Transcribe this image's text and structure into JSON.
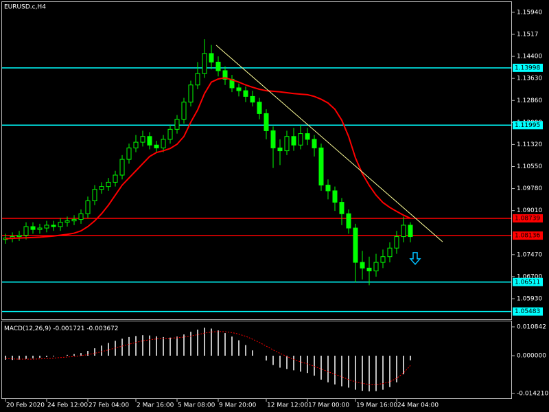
{
  "chart_data": [
    {
      "type": "candlestick",
      "title": "EURUSD.c,H4",
      "open": [
        1.08,
        1.0805,
        1.081,
        1.0815,
        1.0845,
        1.0835,
        1.084,
        1.085,
        1.0845,
        1.086,
        1.0865,
        1.087,
        1.089,
        1.0935,
        1.0975,
        1.0985,
        1.1,
        1.1025,
        1.108,
        1.112,
        1.114,
        1.116,
        1.113,
        1.112,
        1.115,
        1.1185,
        1.122,
        1.128,
        1.134,
        1.138,
        1.145,
        1.142,
        1.139,
        1.136,
        1.133,
        1.132,
        1.13,
        1.128,
        1.124,
        1.118,
        1.112,
        1.111,
        1.116,
        1.113,
        1.117,
        1.115,
        1.112,
        1.099,
        1.097,
        1.093,
        1.089,
        1.084,
        1.072,
        1.07,
        1.069,
        1.072,
        1.074,
        1.077,
        1.081,
        1.085
      ],
      "high": [
        1.082,
        1.0825,
        1.083,
        1.086,
        1.086,
        1.0855,
        1.0865,
        1.0865,
        1.0875,
        1.088,
        1.0885,
        1.0905,
        1.095,
        1.099,
        1.1,
        1.1015,
        1.104,
        1.1095,
        1.1135,
        1.1165,
        1.118,
        1.1175,
        1.1145,
        1.1165,
        1.12,
        1.1235,
        1.1295,
        1.1355,
        1.142,
        1.15,
        1.148,
        1.144,
        1.1405,
        1.1375,
        1.1345,
        1.1335,
        1.132,
        1.1295,
        1.1255,
        1.1195,
        1.115,
        1.118,
        1.119,
        1.12,
        1.119,
        1.1165,
        1.1135,
        1.101,
        1.0985,
        1.0945,
        1.0905,
        1.0855,
        1.076,
        1.074,
        1.075,
        1.0765,
        1.079,
        1.083,
        1.088,
        1.086
      ],
      "low": [
        1.0785,
        1.079,
        1.0795,
        1.08,
        1.082,
        1.082,
        1.0825,
        1.083,
        1.083,
        1.0845,
        1.085,
        1.0855,
        1.0875,
        1.092,
        1.096,
        1.097,
        1.0985,
        1.101,
        1.1065,
        1.1105,
        1.1125,
        1.1115,
        1.1105,
        1.1105,
        1.1135,
        1.117,
        1.1205,
        1.1265,
        1.1325,
        1.1365,
        1.1395,
        1.137,
        1.134,
        1.1315,
        1.13,
        1.128,
        1.1265,
        1.122,
        1.115,
        1.105,
        1.106,
        1.1095,
        1.111,
        1.1115,
        1.113,
        1.109,
        1.097,
        1.094,
        1.09,
        1.085,
        1.082,
        1.065,
        1.066,
        1.064,
        1.067,
        1.07,
        1.072,
        1.075,
        1.079,
        1.079
      ],
      "close": [
        1.0805,
        1.081,
        1.0815,
        1.0845,
        1.0835,
        1.084,
        1.085,
        1.0845,
        1.086,
        1.0865,
        1.087,
        1.089,
        1.0935,
        1.0975,
        1.0985,
        1.1,
        1.1025,
        1.108,
        1.112,
        1.114,
        1.116,
        1.113,
        1.112,
        1.115,
        1.1185,
        1.122,
        1.128,
        1.134,
        1.138,
        1.145,
        1.142,
        1.139,
        1.136,
        1.133,
        1.132,
        1.13,
        1.128,
        1.124,
        1.118,
        1.112,
        1.111,
        1.116,
        1.113,
        1.117,
        1.115,
        1.112,
        1.099,
        1.097,
        1.093,
        1.089,
        1.084,
        1.072,
        1.07,
        1.069,
        1.072,
        1.074,
        1.077,
        1.081,
        1.085,
        1.081
      ],
      "color": "#00ff00",
      "ma": {
        "color": "#ff0000",
        "values": [
          1.0803,
          1.0804,
          1.0805,
          1.0806,
          1.0807,
          1.0808,
          1.081,
          1.0812,
          1.0815,
          1.0818,
          1.0822,
          1.083,
          1.0845,
          1.0865,
          1.089,
          1.092,
          1.0955,
          1.099,
          1.1015,
          1.104,
          1.1065,
          1.109,
          1.1104,
          1.111,
          1.1118,
          1.1133,
          1.116,
          1.121,
          1.1253,
          1.131,
          1.135,
          1.1361,
          1.1365,
          1.1358,
          1.135,
          1.134,
          1.1332,
          1.1325,
          1.132,
          1.1318,
          1.1316,
          1.1313,
          1.131,
          1.1308,
          1.1306,
          1.13,
          1.129,
          1.1277,
          1.1255,
          1.1217,
          1.116,
          1.1085,
          1.103,
          1.0989,
          1.0955,
          1.0929,
          1.0912,
          1.0898,
          1.0885,
          1.0874
        ]
      },
      "xlim": [
        -0.5,
        73.7
      ],
      "xticks": [
        {
          "value": 0,
          "label": "20 Feb 2020"
        },
        {
          "value": 6,
          "label": "24 Feb 12:00"
        },
        {
          "value": 12,
          "label": "27 Feb 04:00"
        },
        {
          "value": 19,
          "label": "2 Mar 16:00"
        },
        {
          "value": 25,
          "label": "5 Mar 08:00"
        },
        {
          "value": 31,
          "label": "9 Mar 20:00"
        },
        {
          "value": 38,
          "label": "12 Mar 12:00"
        },
        {
          "value": 44,
          "label": "17 Mar 00:00"
        },
        {
          "value": 51,
          "label": "19 Mar 16:00"
        },
        {
          "value": 57,
          "label": "24 Mar 04:00"
        }
      ],
      "ylim": [
        1.0521,
        1.1637
      ],
      "yticks": [
        {
          "value": 1.1594,
          "label": "1.15940"
        },
        1.1517,
        {
          "value": 1.144,
          "label": "1.14400"
        },
        {
          "value": 1.1363,
          "label": "1.13630"
        },
        {
          "value": 1.1286,
          "label": "1.12860"
        },
        {
          "value": 1.1209,
          "label": "1.12090"
        },
        {
          "value": 1.1132,
          "label": "1.11320"
        },
        {
          "value": 1.1055,
          "label": "1.10550"
        },
        {
          "value": 1.0978,
          "label": "1.09780"
        },
        {
          "value": 1.0901,
          "label": "1.09010"
        },
        {
          "value": 1.0747,
          "label": "1.07470"
        },
        {
          "value": 1.067,
          "label": "1.06700"
        },
        {
          "value": 1.0593,
          "label": "1.05930"
        }
      ],
      "hlines": [
        {
          "value": 1.13998,
          "color": "#00ffff"
        },
        {
          "value": 1.11995,
          "color": "#00ffff"
        },
        {
          "value": 1.08739,
          "color": "#ff0000"
        },
        {
          "value": 1.08136,
          "color": "#ff0000"
        },
        {
          "value": 1.06511,
          "color": "#00ffff"
        },
        {
          "value": 1.05483,
          "color": "#00ffff"
        }
      ],
      "trendline": {
        "x": [
          30.7,
          63.7
        ],
        "y": [
          1.1479,
          1.0792
        ],
        "color": "#ffff99"
      },
      "arrow": {
        "x": 59.7,
        "y": 1.073,
        "color": "#00bfff"
      }
    },
    {
      "type": "macd",
      "title": "MACD(12,26,9)",
      "histogram": {
        "color": "#c0c0c0",
        "values": [
          -0.0015,
          -0.0016,
          -0.0015,
          -0.0012,
          -0.001,
          -0.0008,
          -0.0005,
          -0.0003,
          0.0,
          0.0003,
          0.0006,
          0.001,
          0.0018,
          0.0028,
          0.0038,
          0.0048,
          0.0056,
          0.0064,
          0.007,
          0.0074,
          0.0077,
          0.0076,
          0.0073,
          0.007,
          0.0068,
          0.0072,
          0.008,
          0.009,
          0.0098,
          0.0105,
          0.0102,
          0.0095,
          0.0085,
          0.0072,
          0.0058,
          0.004,
          0.002,
          0.0,
          -0.0018,
          -0.0035,
          -0.0045,
          -0.005,
          -0.0055,
          -0.006,
          -0.0065,
          -0.0075,
          -0.009,
          -0.01,
          -0.0108,
          -0.0115,
          -0.012,
          -0.0128,
          -0.0132,
          -0.0134,
          -0.0133,
          -0.0128,
          -0.0118,
          -0.01,
          -0.007,
          -0.001721
        ]
      },
      "signal": {
        "color": "#ff0000",
        "values": [
          -0.001,
          -0.0012,
          -0.0013,
          -0.0013,
          -0.0013,
          -0.0012,
          -0.0011,
          -0.0009,
          -0.0007,
          -0.0005,
          -0.0003,
          0.0,
          0.0004,
          0.0009,
          0.0015,
          0.0022,
          0.0029,
          0.0036,
          0.0043,
          0.005,
          0.0056,
          0.006,
          0.0063,
          0.0065,
          0.0066,
          0.0067,
          0.007,
          0.0074,
          0.0079,
          0.0085,
          0.0089,
          0.0091,
          0.009,
          0.0087,
          0.0081,
          0.0073,
          0.0062,
          0.005,
          0.0036,
          0.0022,
          0.0009,
          -0.0003,
          -0.0014,
          -0.0023,
          -0.0031,
          -0.004,
          -0.005,
          -0.006,
          -0.007,
          -0.0079,
          -0.009,
          -0.0098,
          -0.0104,
          -0.0108,
          -0.0108,
          -0.0105,
          -0.0098,
          -0.0085,
          -0.0065,
          -0.003672
        ]
      },
      "ylim": [
        -0.016,
        0.01291
      ],
      "yticks": [
        0.010842,
        {
          "value": 0,
          "label": "0.000000"
        },
        {
          "value": -0.01421,
          "label": "-0.014210"
        }
      ]
    }
  ]
}
